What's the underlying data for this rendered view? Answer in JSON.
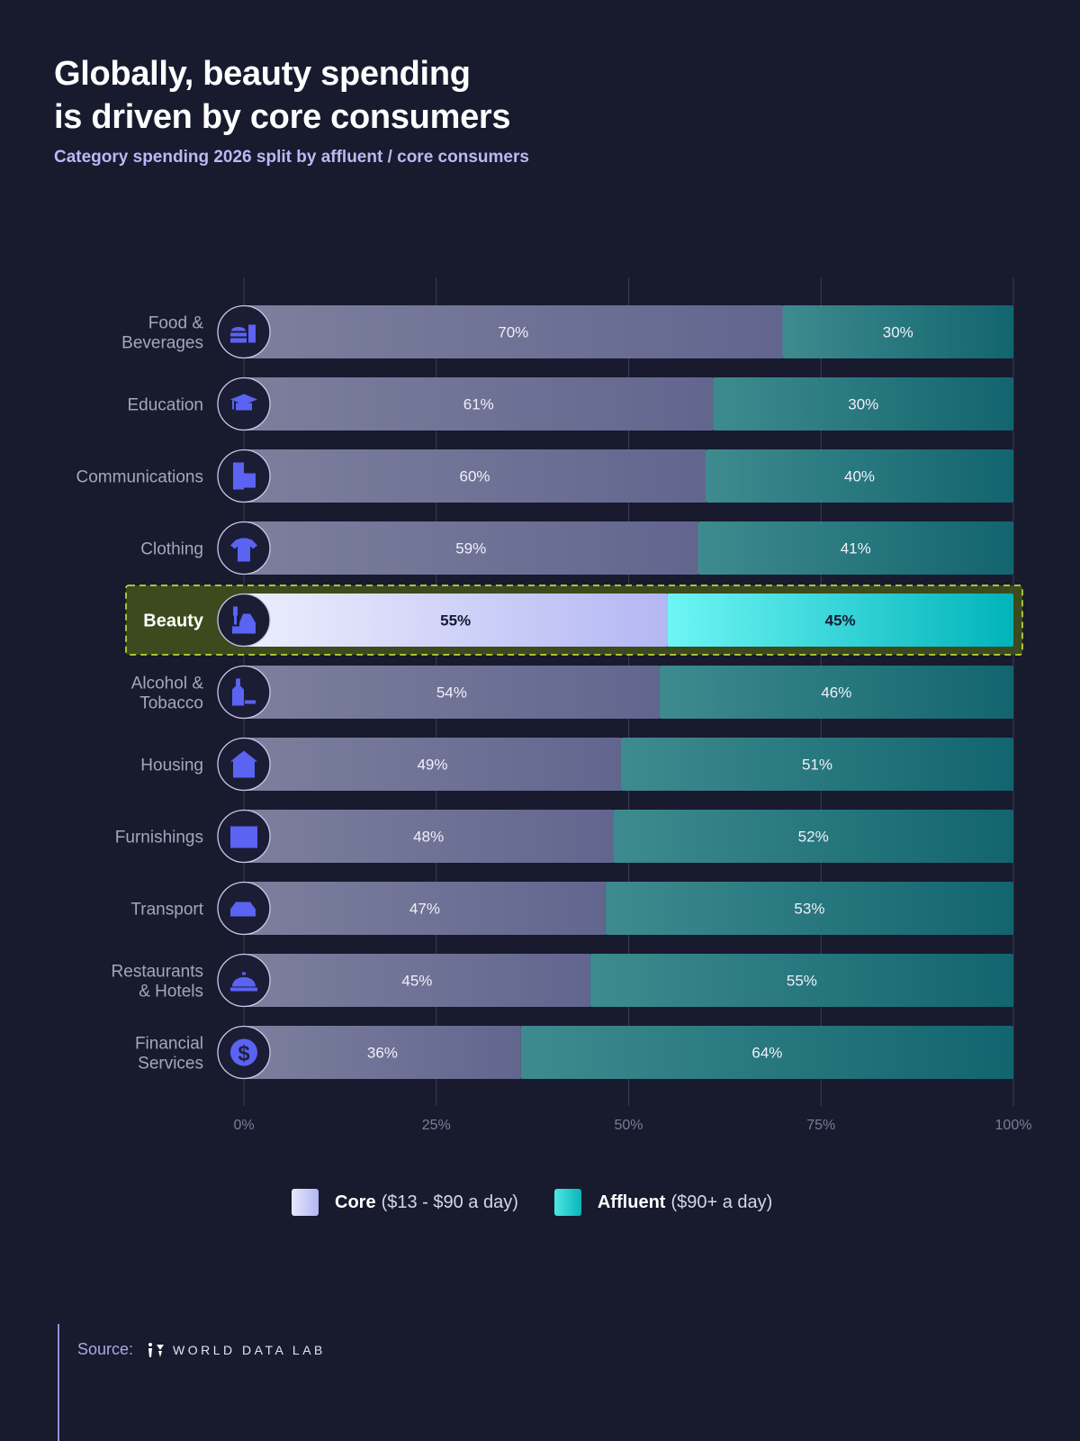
{
  "title": "Globally, beauty spending is driven by core consumers",
  "title_lines": [
    "Globally, beauty spending",
    "is driven by core consumers"
  ],
  "subtitle": "Category spending 2026 split by affluent / core consumers",
  "colors": {
    "background": "#181a2e",
    "core": "#6f7296",
    "affluent": "#2a7a80",
    "highlight_core": "#c9cbf7",
    "highlight_affluent": "#2fd6d8",
    "highlight_box": "#3d4a1e",
    "highlight_border": "#d4f03c",
    "icon": "#5b63f3"
  },
  "chart_data": {
    "type": "bar",
    "orientation": "horizontal",
    "stacked": true,
    "title": "Globally, beauty spending is driven by core consumers",
    "subtitle": "Category spending 2026 split by affluent / core consumers",
    "categories": [
      "Food & Beverages",
      "Education",
      "Communications",
      "Clothing",
      "Beauty",
      "Alcohol & Tobacco",
      "Housing",
      "Furnishings",
      "Transport",
      "Restaurants & Hotels",
      "Financial Services"
    ],
    "category_lines": [
      [
        "Food &",
        "Beverages"
      ],
      [
        "Education"
      ],
      [
        "Communications"
      ],
      [
        "Clothing"
      ],
      [
        "Beauty"
      ],
      [
        "Alcohol &",
        "Tobacco"
      ],
      [
        "Housing"
      ],
      [
        "Furnishings"
      ],
      [
        "Transport"
      ],
      [
        "Restaurants",
        "& Hotels"
      ],
      [
        "Financial",
        "Services"
      ]
    ],
    "icons": [
      "burger-drink-icon",
      "graduation-cap-icon",
      "phone-mail-icon",
      "tshirt-icon",
      "beauty-products-icon",
      "bottle-icon",
      "house-icon",
      "drawers-icon",
      "car-icon",
      "cloche-icon",
      "dollar-icon"
    ],
    "highlight": "Beauty",
    "series": [
      {
        "name": "Core",
        "values": [
          70,
          61,
          60,
          59,
          55,
          54,
          49,
          48,
          47,
          45,
          36
        ]
      },
      {
        "name": "Affluent",
        "values": [
          30,
          30,
          40,
          41,
          45,
          46,
          51,
          52,
          53,
          55,
          64
        ]
      }
    ],
    "xlim": [
      0,
      100
    ],
    "xticks": [
      "0%",
      "25%",
      "50%",
      "75%",
      "100%"
    ],
    "grid": true,
    "legend_position": "bottom"
  },
  "legend": [
    {
      "name": "Core",
      "detail": "($13 - $90 a day)"
    },
    {
      "name": "Affluent",
      "detail": "($90+ a day)"
    }
  ],
  "source": {
    "label": "Source:",
    "org": "WORLD DATA LAB"
  }
}
